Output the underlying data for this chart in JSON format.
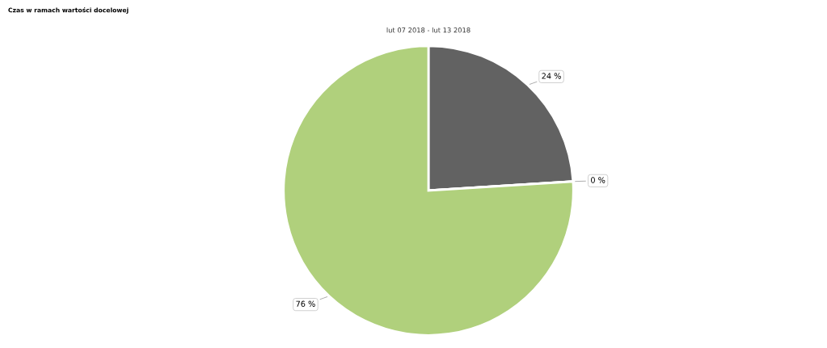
{
  "chart_data": {
    "type": "pie",
    "title": "Czas w ramach wartości docelowej",
    "subtitle": "lut 07 2018 - lut 13 2018",
    "categories": [
      null,
      null,
      null
    ],
    "values": [
      24,
      0,
      76
    ],
    "colors": [
      "#626262",
      "#e3c35a",
      "#b0d07c"
    ],
    "value_labels": [
      "24 %",
      "0 %",
      "76 %"
    ]
  }
}
